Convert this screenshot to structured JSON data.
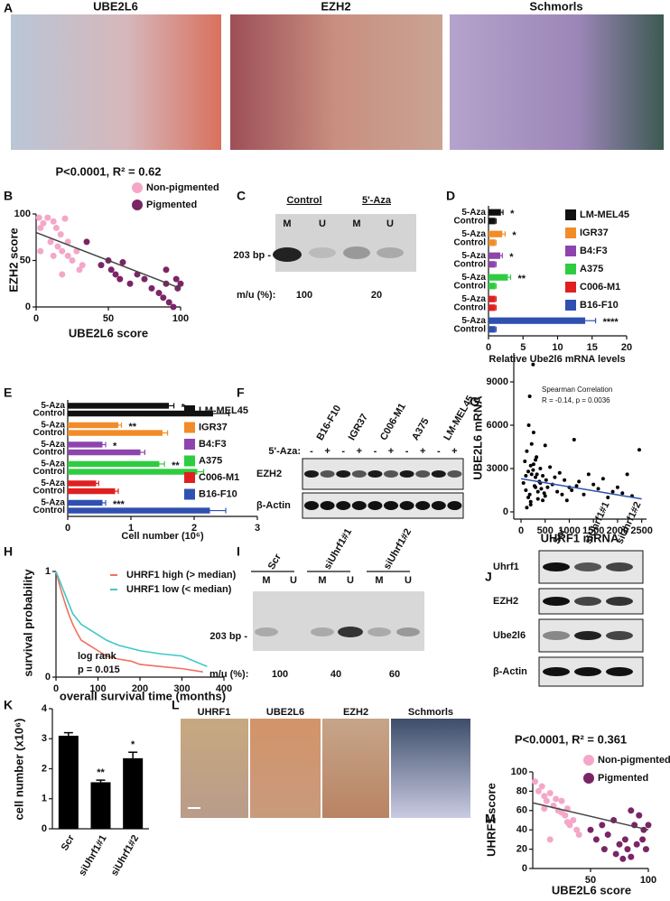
{
  "panel_labels": [
    "A",
    "B",
    "C",
    "D",
    "E",
    "F",
    "G",
    "H",
    "I",
    "J",
    "K",
    "L",
    "M"
  ],
  "panel_a_titles": [
    "UBE2L6",
    "EZH2",
    "Schmorls"
  ],
  "panel_l_titles": [
    "UHRF1",
    "UBE2L6",
    "EZH2",
    "Schmorls"
  ],
  "gel_c": {
    "groups": [
      "Control",
      "5'-Aza"
    ],
    "lanes": [
      "M",
      "U",
      "M",
      "U"
    ],
    "marker": "203 bp -",
    "ratio_label": "m/u (%):",
    "ratios": [
      100,
      20
    ]
  },
  "blot_f": {
    "cell_lines": [
      "B16-F10",
      "IGR37",
      "C006-M1",
      "A375",
      "LM-MEL45"
    ],
    "treatment_label": "5'-Aza:",
    "treatment": [
      "-",
      "+",
      "-",
      "+",
      "-",
      "+",
      "-",
      "+",
      "-",
      "+"
    ],
    "rows": [
      "EZH2",
      "β-Actin"
    ]
  },
  "gel_i": {
    "groups": [
      "Scr",
      "siUhrf1#1",
      "siUhrf1#2"
    ],
    "lanes": [
      "M",
      "U",
      "M",
      "U",
      "M",
      "U"
    ],
    "marker": "203 bp -",
    "ratio_label": "m/u (%):",
    "ratios": [
      100,
      40,
      60
    ]
  },
  "blot_j": {
    "conditions": [
      "Scr",
      "siUhrf1#1",
      "siUhrf1#2"
    ],
    "rows": [
      "Uhrf1",
      "EZH2",
      "Ube2l6",
      "β-Actin"
    ]
  },
  "chart_data": [
    {
      "type": "scatter",
      "title": "P<0.0001, R² = 0.62",
      "x_label": "UBE2L6 score",
      "y_label": "EZH2 score",
      "xlim": [
        0,
        100
      ],
      "ylim": [
        0,
        100
      ],
      "xticks": [
        0,
        50,
        100
      ],
      "yticks": [
        0,
        50,
        100
      ],
      "series": [
        {
          "name": "Non-pigmented",
          "color": "#f4a7c8",
          "x": [
            2,
            3,
            5,
            8,
            10,
            12,
            14,
            15,
            17,
            18,
            20,
            22,
            25,
            28,
            30,
            32,
            12,
            18,
            22,
            3
          ],
          "y": [
            96,
            85,
            90,
            96,
            70,
            92,
            85,
            65,
            78,
            60,
            95,
            55,
            50,
            60,
            40,
            45,
            55,
            35,
            70,
            60
          ]
        },
        {
          "name": "Pigmented",
          "color": "#7a2566",
          "x": [
            35,
            45,
            50,
            52,
            55,
            58,
            60,
            65,
            70,
            75,
            80,
            85,
            88,
            90,
            92,
            95,
            97,
            98,
            100,
            90
          ],
          "y": [
            70,
            45,
            50,
            40,
            35,
            30,
            48,
            25,
            35,
            30,
            20,
            15,
            10,
            25,
            5,
            0,
            30,
            20,
            25,
            40
          ]
        }
      ],
      "fit": {
        "x": [
          0,
          100
        ],
        "y": [
          80,
          20
        ]
      },
      "fit_color": "#444"
    },
    {
      "type": "hbar",
      "x_label": "Relative Ube2l6 mRNA levels",
      "xlim": [
        0,
        20
      ],
      "xticks": [
        0,
        5,
        10,
        15,
        20
      ],
      "bar_labels": [
        "5-Aza",
        "Control"
      ],
      "groups": [
        {
          "name": "LM-MEL45",
          "color": "#111111",
          "values": [
            1.8,
            1.0
          ],
          "errors": [
            0.3,
            0.1
          ],
          "significance": "*"
        },
        {
          "name": "IGR37",
          "color": "#f28c28",
          "values": [
            2.0,
            1.0
          ],
          "errors": [
            0.4,
            0.1
          ],
          "significance": "*"
        },
        {
          "name": "B4:F3",
          "color": "#8e44ad",
          "values": [
            1.7,
            1.0
          ],
          "errors": [
            0.3,
            0.1
          ],
          "significance": "*"
        },
        {
          "name": "A375",
          "color": "#2ecc40",
          "values": [
            2.8,
            1.0
          ],
          "errors": [
            0.4,
            0.1
          ],
          "significance": "**"
        },
        {
          "name": "C006-M1",
          "color": "#e02020",
          "values": [
            1.0,
            1.0
          ],
          "errors": [
            0.1,
            0.1
          ],
          "significance": null
        },
        {
          "name": "B16-F10",
          "color": "#3050b0",
          "values": [
            14,
            1.0
          ],
          "errors": [
            1.5,
            0.1
          ],
          "significance": "****"
        }
      ]
    },
    {
      "type": "hbar",
      "x_label": "Cell number (10⁶)",
      "xlim": [
        0,
        3
      ],
      "xticks": [
        0,
        1,
        2,
        3
      ],
      "bar_labels": [
        "5-Aza",
        "Control"
      ],
      "groups": [
        {
          "name": "LM-MEL45",
          "color": "#111111",
          "values": [
            1.6,
            2.3
          ],
          "errors": [
            0.08,
            0.25
          ],
          "significance": "*"
        },
        {
          "name": "IGR37",
          "color": "#f28c28",
          "values": [
            0.8,
            1.5
          ],
          "errors": [
            0.05,
            0.08
          ],
          "significance": "**"
        },
        {
          "name": "B4:F3",
          "color": "#8e44ad",
          "values": [
            0.55,
            1.15
          ],
          "errors": [
            0.05,
            0.07
          ],
          "significance": "*"
        },
        {
          "name": "A375",
          "color": "#2ecc40",
          "values": [
            1.45,
            2.05
          ],
          "errors": [
            0.08,
            0.1
          ],
          "significance": "**"
        },
        {
          "name": "C006-M1",
          "color": "#e02020",
          "values": [
            0.45,
            0.75
          ],
          "errors": [
            0.04,
            0.05
          ],
          "significance": null
        },
        {
          "name": "B16-F10",
          "color": "#3050b0",
          "values": [
            0.55,
            2.25
          ],
          "errors": [
            0.05,
            0.25
          ],
          "significance": "***"
        }
      ]
    },
    {
      "type": "scatter",
      "title": "Spearman Correlation",
      "subtitle": "R = -0.14, p = 0.0036",
      "x_label": "UHRF1 mRNA",
      "y_label": "UBE2L6 mRNA",
      "xlim": [
        -150,
        2600
      ],
      "ylim": [
        -500,
        11000
      ],
      "xticks": [
        0,
        500,
        1000,
        1500,
        2000,
        2500
      ],
      "yticks": [
        0,
        3000,
        6000,
        9000
      ],
      "series": [
        {
          "color": "#000000",
          "x": [
            50,
            80,
            100,
            120,
            150,
            160,
            180,
            200,
            220,
            250,
            260,
            280,
            300,
            320,
            350,
            380,
            400,
            420,
            450,
            480,
            500,
            520,
            550,
            600,
            650,
            700,
            750,
            800,
            850,
            900,
            950,
            1000,
            1050,
            1100,
            1150,
            1200,
            1300,
            1400,
            1500,
            1600,
            1700,
            1800,
            1900,
            2000,
            2100,
            2200,
            2300,
            2450,
            150,
            200,
            250,
            300,
            350,
            400,
            450,
            500,
            100,
            200,
            300,
            180,
            220,
            120,
            260,
            330
          ],
          "y": [
            2000,
            3500,
            1500,
            4200,
            2800,
            6000,
            1200,
            3200,
            2600,
            10200,
            5500,
            1800,
            2400,
            3800,
            900,
            2100,
            3000,
            1600,
            2500,
            1300,
            4600,
            2200,
            1700,
            3100,
            1900,
            2400,
            1400,
            2700,
            1200,
            2200,
            800,
            1700,
            1500,
            5000,
            1800,
            2100,
            1200,
            2600,
            1900,
            1600,
            2300,
            1000,
            1400,
            1700,
            1300,
            2600,
            1100,
            4300,
            1000,
            700,
            2900,
            3600,
            1400,
            2000,
            800,
            1100,
            2500,
            500,
            1700,
            8000,
            4700,
            300,
            3300,
            2600
          ]
        }
      ],
      "fit": {
        "x": [
          0,
          2500
        ],
        "y": [
          2300,
          900
        ]
      },
      "fit_color": "#3050b0"
    },
    {
      "type": "line",
      "x_label": "overall survival time (months)",
      "y_label": "survival probability",
      "xlim": [
        0,
        400
      ],
      "ylim": [
        0,
        1
      ],
      "xticks": [
        0,
        100,
        200,
        300,
        400
      ],
      "yticks": [
        0,
        1
      ],
      "annotations": [
        "log rank",
        "p = 0.015"
      ],
      "series": [
        {
          "name": "UHRF1 high (> median)",
          "color": "#f07060",
          "x": [
            0,
            10,
            20,
            30,
            40,
            50,
            60,
            80,
            100,
            120,
            150,
            180,
            200,
            250,
            300,
            350
          ],
          "y": [
            1,
            0.85,
            0.72,
            0.6,
            0.5,
            0.42,
            0.35,
            0.3,
            0.25,
            0.2,
            0.17,
            0.15,
            0.12,
            0.1,
            0.08,
            0.05
          ]
        },
        {
          "name": "UHRF1 low (< median)",
          "color": "#40c8c8",
          "x": [
            0,
            10,
            20,
            30,
            40,
            50,
            60,
            80,
            100,
            120,
            150,
            180,
            200,
            250,
            300,
            360
          ],
          "y": [
            1,
            0.9,
            0.8,
            0.7,
            0.6,
            0.55,
            0.5,
            0.45,
            0.4,
            0.35,
            0.3,
            0.27,
            0.25,
            0.22,
            0.2,
            0.1
          ]
        }
      ]
    },
    {
      "type": "bar",
      "y_label": "cell number (x10⁶)",
      "categories": [
        "Scr",
        "siUhrf1#1",
        "siUhrf1#2"
      ],
      "values": [
        3.1,
        1.55,
        2.35
      ],
      "errors": [
        0.1,
        0.07,
        0.2
      ],
      "significance": [
        null,
        "**",
        "*"
      ],
      "color": "#000000",
      "ylim": [
        0,
        4
      ],
      "yticks": [
        0,
        1,
        2,
        3,
        4
      ]
    },
    {
      "type": "scatter",
      "title": "P<0.0001, R² = 0.361",
      "x_label": "UBE2L6 score",
      "y_label": "UHRF1 score",
      "xlim": [
        0,
        100
      ],
      "ylim": [
        0,
        100
      ],
      "xticks": [
        50,
        100
      ],
      "yticks": [
        0,
        20,
        40,
        60,
        80,
        100
      ],
      "series": [
        {
          "name": "Non-pigmented",
          "color": "#f4a7c8",
          "x": [
            2,
            5,
            8,
            10,
            12,
            15,
            18,
            20,
            22,
            25,
            28,
            30,
            32,
            35,
            38,
            40,
            15,
            25,
            10,
            30
          ],
          "y": [
            90,
            80,
            85,
            75,
            70,
            78,
            65,
            72,
            60,
            70,
            55,
            62,
            45,
            50,
            40,
            35,
            30,
            58,
            62,
            48
          ]
        },
        {
          "name": "Pigmented",
          "color": "#7a2566",
          "x": [
            50,
            55,
            60,
            62,
            65,
            70,
            72,
            75,
            78,
            80,
            82,
            85,
            88,
            90,
            92,
            95,
            98,
            100,
            96,
            85
          ],
          "y": [
            40,
            30,
            45,
            20,
            35,
            50,
            15,
            25,
            10,
            30,
            20,
            12,
            45,
            25,
            55,
            30,
            20,
            45,
            40,
            60
          ]
        }
      ],
      "fit": {
        "x": [
          0,
          100
        ],
        "y": [
          68,
          40
        ]
      },
      "fit_color": "#444"
    }
  ]
}
